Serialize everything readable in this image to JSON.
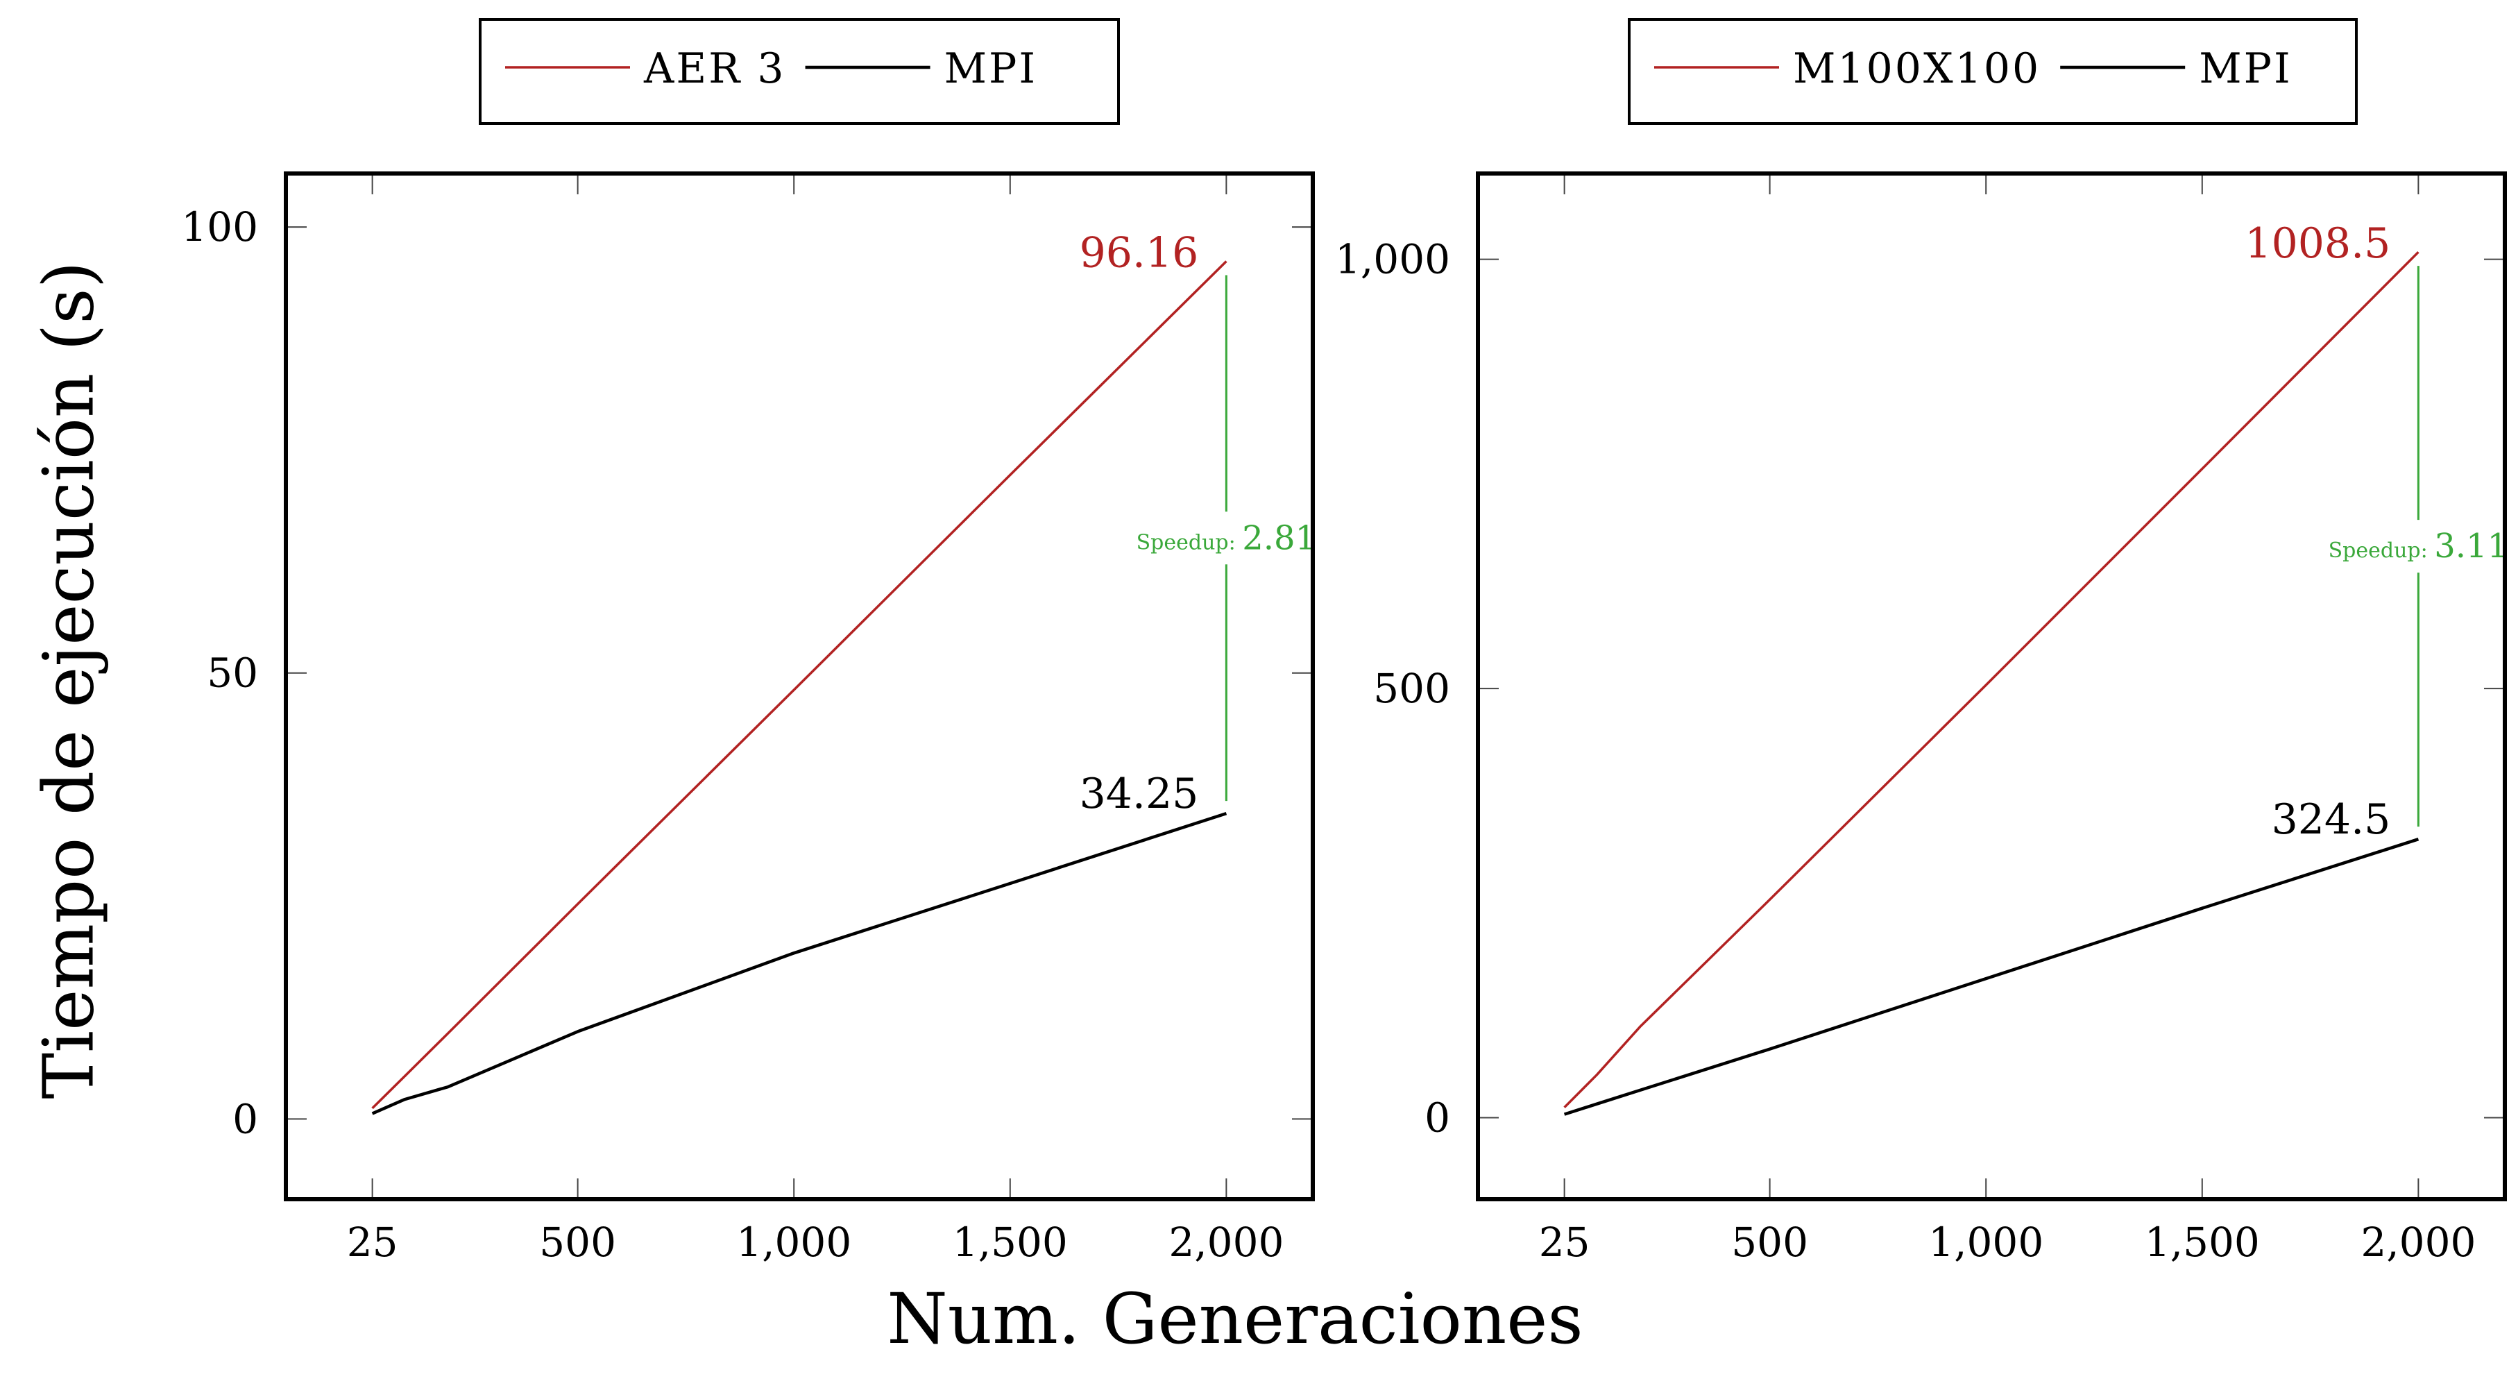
{
  "figure": {
    "ylabel": "Tiempo de ejecución (s)",
    "xlabel": "Num. Generaciones"
  },
  "colors": {
    "red": "#b22222",
    "black": "#000000",
    "green": "#3aa83a",
    "gray": "#555555"
  },
  "chart_data": [
    {
      "type": "line",
      "title": "",
      "xlabel": "",
      "ylabel": "Tiempo de ejecución (s)",
      "x_ticks": [
        25,
        500,
        1000,
        1500,
        2000
      ],
      "x_tick_labels": [
        "25",
        "500",
        "1,000",
        "1,500",
        "2,000"
      ],
      "y_ticks": [
        0,
        50,
        100
      ],
      "y_tick_labels": [
        "0",
        "50",
        "100"
      ],
      "xlim": [
        -175,
        2200
      ],
      "ylim": [
        -9,
        106
      ],
      "legend_position": "top",
      "series": [
        {
          "name": "AER 3",
          "color": "#b22222",
          "x": [
            25,
            100,
            200,
            500,
            1000,
            1500,
            2000
          ],
          "y": [
            1.2,
            4.8,
            9.6,
            24.1,
            48.1,
            72.2,
            96.16
          ]
        },
        {
          "name": "MPI",
          "color": "#000000",
          "x": [
            25,
            100,
            200,
            500,
            1000,
            1500,
            2000
          ],
          "y": [
            0.6,
            2.2,
            3.6,
            9.8,
            18.6,
            26.4,
            34.25
          ]
        }
      ],
      "annotations": {
        "top_value": "96.16",
        "bottom_value": "34.25",
        "speedup_label": "Speedup:",
        "speedup_value": "2.81",
        "at_x": 2000
      }
    },
    {
      "type": "line",
      "title": "",
      "xlabel": "",
      "ylabel": "",
      "x_ticks": [
        25,
        500,
        1000,
        1500,
        2000
      ],
      "x_tick_labels": [
        "25",
        "500",
        "1,000",
        "1,500",
        "2,000"
      ],
      "y_ticks": [
        0,
        500,
        1000
      ],
      "y_tick_labels": [
        "0",
        "500",
        "1,000"
      ],
      "xlim": [
        -175,
        2200
      ],
      "ylim": [
        -95,
        1100
      ],
      "legend_position": "top",
      "series": [
        {
          "name": "M100X100",
          "color": "#b22222",
          "x": [
            25,
            100,
            200,
            500,
            1000,
            1500,
            2000
          ],
          "y": [
            12,
            50,
            106,
            254,
            504,
            756,
            1008.5
          ]
        },
        {
          "name": "MPI",
          "color": "#000000",
          "x": [
            25,
            100,
            200,
            500,
            1000,
            1500,
            2000
          ],
          "y": [
            4,
            16,
            32,
            80,
            162,
            244,
            324.5
          ]
        }
      ],
      "annotations": {
        "top_value": "1008.5",
        "bottom_value": "324.5",
        "speedup_label": "Speedup:",
        "speedup_value": "3.11",
        "at_x": 2000
      }
    }
  ]
}
